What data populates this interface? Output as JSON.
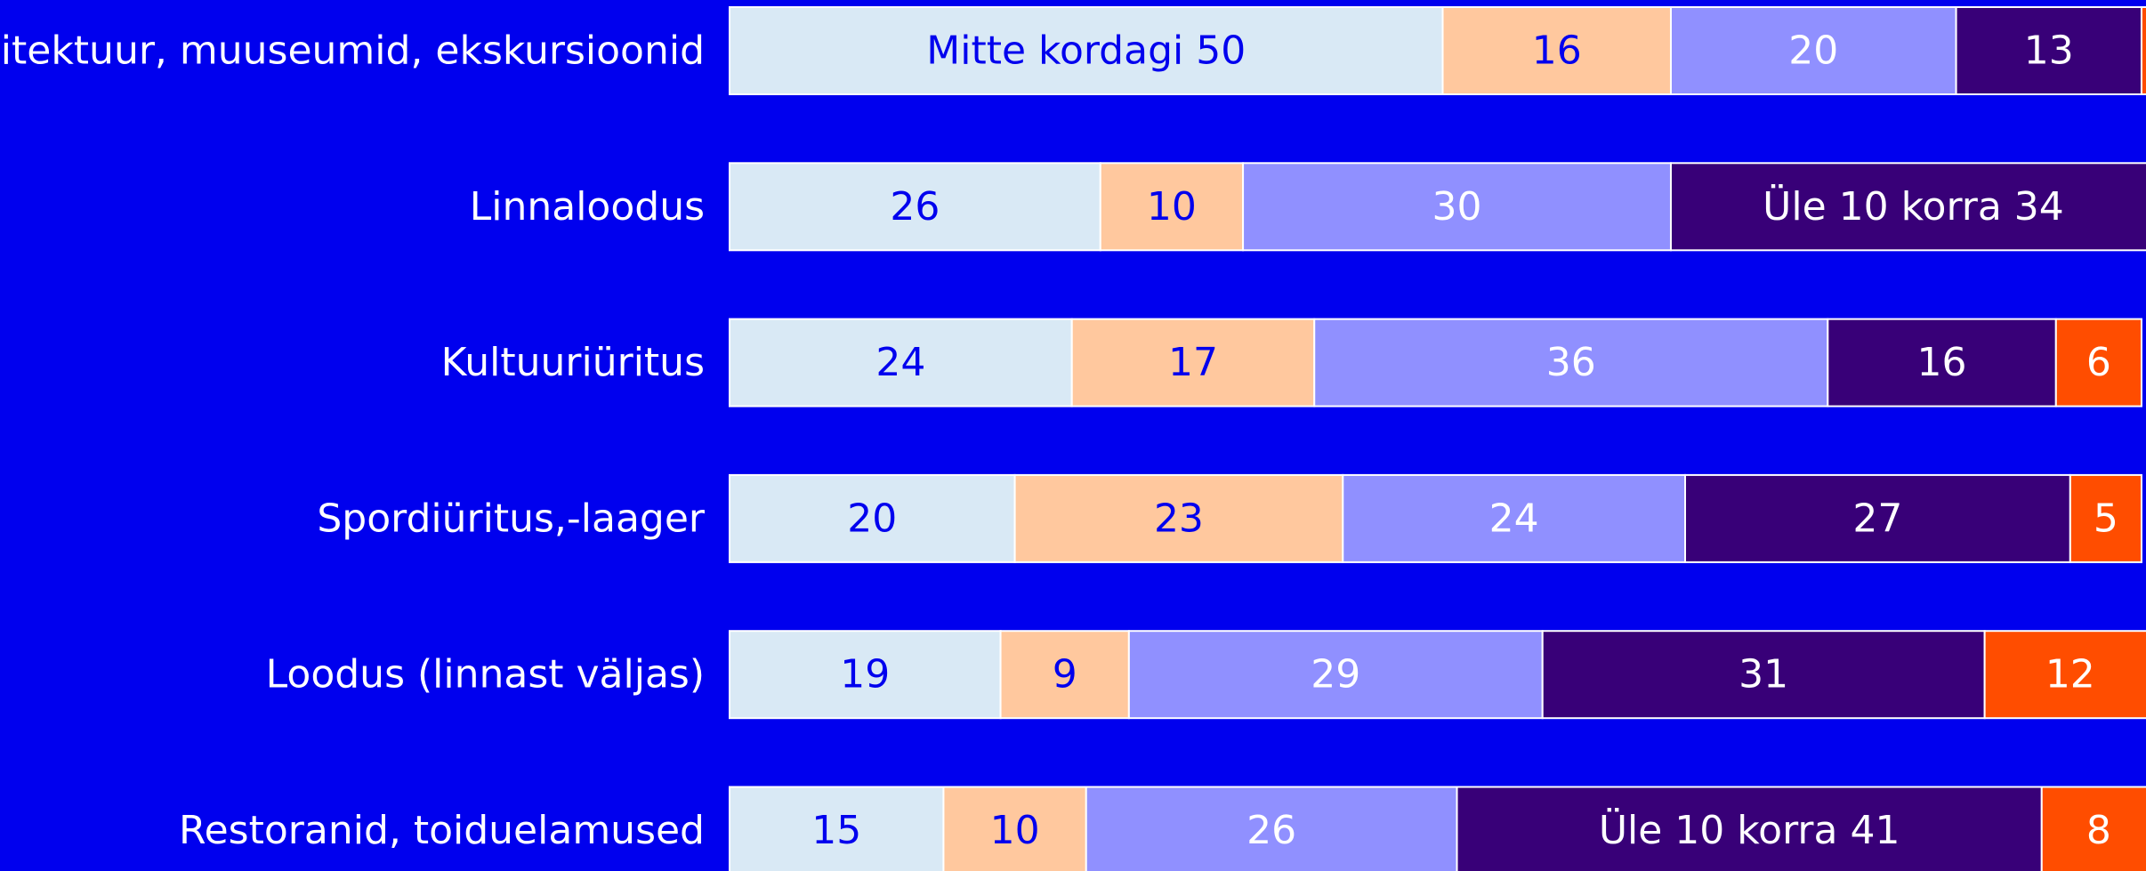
{
  "chart_data": {
    "type": "stacked-bar-horizontal",
    "categories": [
      "Arhitektuur, muuseumid, ekskursioonid",
      "Linnaloodus",
      "Kultuuriüritus",
      "Spordiüritus,-laager",
      "Loodus (linnast väljas)",
      "Restoranid, toiduelamused"
    ],
    "xlim": [
      0,
      100
    ],
    "series": [
      {
        "color": "#d9e9f5",
        "text_color": "#0000ee",
        "values": [
          50,
          26,
          24,
          20,
          19,
          15
        ],
        "value_labels": [
          "Mitte kordagi 50",
          null,
          null,
          null,
          null,
          null
        ]
      },
      {
        "color": "#ffc89e",
        "text_color": "#0000ee",
        "values": [
          16,
          10,
          17,
          23,
          9,
          10
        ]
      },
      {
        "color": "#9090ff",
        "text_color": "#ffffff",
        "values": [
          20,
          30,
          36,
          24,
          29,
          26
        ]
      },
      {
        "color": "#380078",
        "text_color": "#ffffff",
        "values": [
          13,
          34,
          16,
          27,
          31,
          41
        ],
        "value_labels": [
          null,
          "Üle 10 korra 34",
          null,
          null,
          null,
          "Üle 10 korra 41"
        ]
      },
      {
        "color": "#ff4d00",
        "text_color": "#ffffff",
        "values": [
          1,
          null,
          6,
          5,
          12,
          8
        ]
      }
    ]
  }
}
